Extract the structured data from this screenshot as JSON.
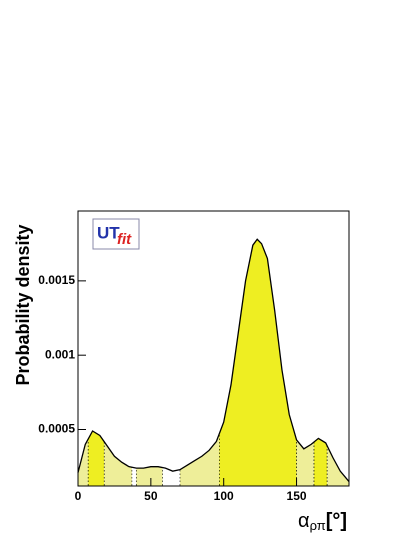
{
  "chart_data": {
    "type": "line",
    "ylabel": "Probability density",
    "xlabel": {
      "symbol": "α",
      "subscript": "ρπ",
      "unit": "[°]"
    },
    "logo": {
      "main": "UT",
      "sub": "fit"
    },
    "x": [
      0,
      5,
      10,
      15,
      20,
      25,
      30,
      35,
      40,
      45,
      50,
      55,
      60,
      65,
      70,
      75,
      80,
      85,
      90,
      95,
      100,
      105,
      110,
      115,
      120,
      123,
      126,
      130,
      135,
      140,
      145,
      150,
      155,
      160,
      165,
      170,
      175,
      180,
      186
    ],
    "values": [
      0.00021,
      0.0004,
      0.00049,
      0.00046,
      0.00039,
      0.00032,
      0.00028,
      0.00025,
      0.00024,
      0.00024,
      0.00025,
      0.00025,
      0.00024,
      0.00022,
      0.00023,
      0.00026,
      0.00029,
      0.00032,
      0.00036,
      0.00042,
      0.00055,
      0.0008,
      0.00115,
      0.0015,
      0.00174,
      0.00178,
      0.00175,
      0.00165,
      0.0013,
      0.0009,
      0.0006,
      0.00043,
      0.00037,
      0.0004,
      0.00044,
      0.00041,
      0.00031,
      0.00022,
      0.00015
    ],
    "line_color": "#000000",
    "regions": [
      {
        "from": 0,
        "to": 7,
        "color": "#eeee99"
      },
      {
        "from": 7,
        "to": 18,
        "color": "#eeee22"
      },
      {
        "from": 18,
        "to": 37,
        "color": "#eeee99"
      },
      {
        "from": 40,
        "to": 58,
        "color": "#eeee99"
      },
      {
        "from": 70,
        "to": 97,
        "color": "#eeee99"
      },
      {
        "from": 97,
        "to": 150,
        "color": "#eeee22"
      },
      {
        "from": 150,
        "to": 162,
        "color": "#eeee99"
      },
      {
        "from": 162,
        "to": 171,
        "color": "#eeee22"
      },
      {
        "from": 171,
        "to": 186,
        "color": "#eeee99"
      }
    ],
    "xlim": [
      0,
      186
    ],
    "ylim": [
      0.00012,
      0.00197
    ],
    "xticks": [
      0,
      50,
      100,
      150
    ],
    "yticks": [
      0.0005,
      0.001,
      0.0015
    ]
  }
}
